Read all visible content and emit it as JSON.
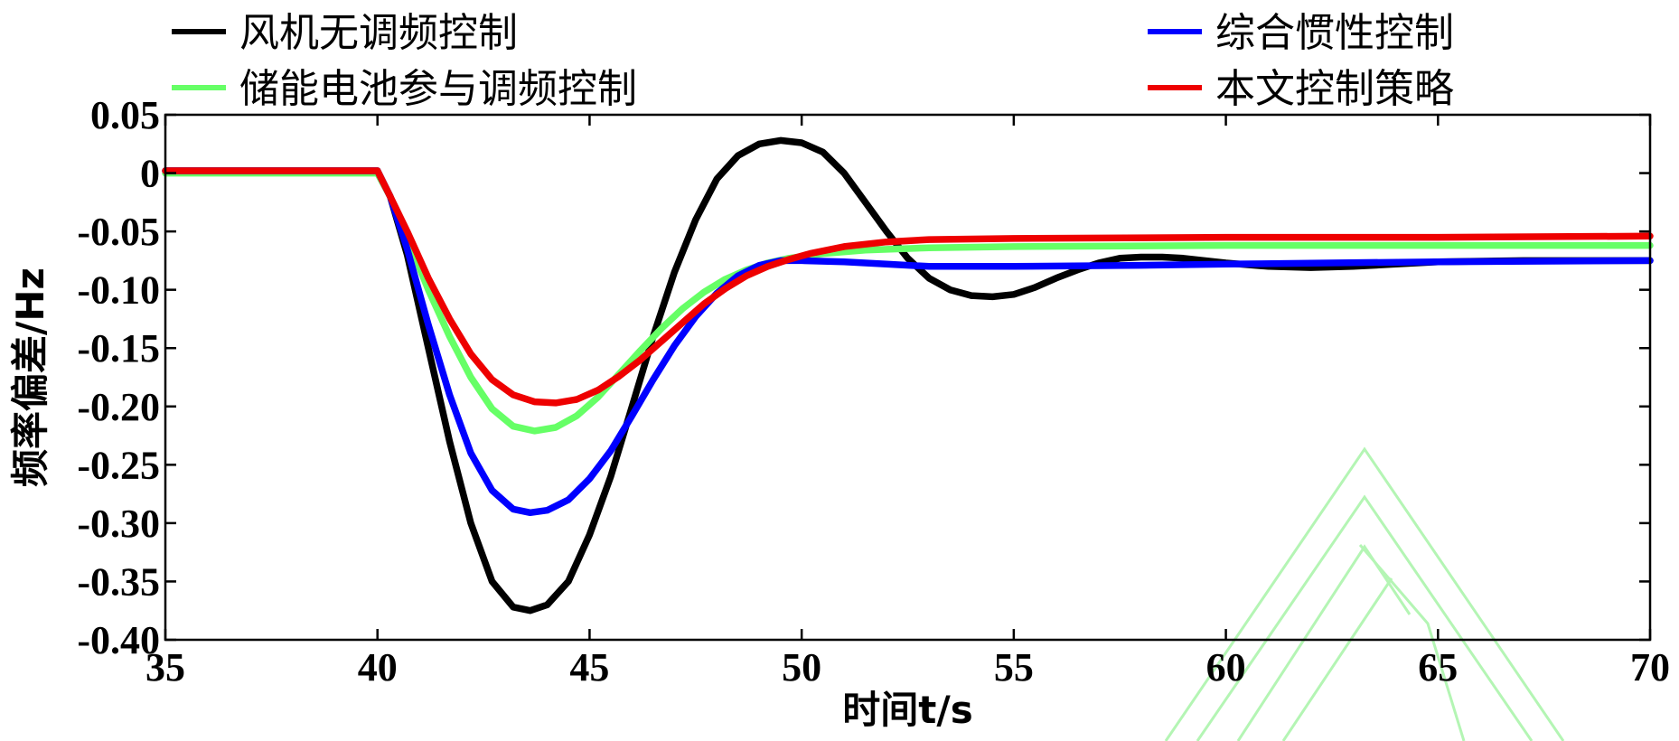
{
  "chart_data": {
    "type": "line",
    "xlabel": "时间t/s",
    "ylabel": "频率偏差/Hz",
    "xlim": [
      35,
      70
    ],
    "ylim": [
      -0.4,
      0.05
    ],
    "xticks": [
      35,
      40,
      45,
      50,
      55,
      60,
      65,
      70
    ],
    "xtick_labels": [
      "35",
      "40",
      "45",
      "50",
      "55",
      "60",
      "65",
      "70"
    ],
    "yticks": [
      0.05,
      0,
      -0.05,
      -0.1,
      -0.15,
      -0.2,
      -0.25,
      -0.3,
      -0.35,
      -0.4
    ],
    "ytick_labels": [
      "0.05",
      "0",
      "-0.05",
      "-0.10",
      "-0.15",
      "-0.20",
      "-0.25",
      "-0.30",
      "-0.35",
      "-0.40"
    ],
    "grid": false,
    "legend_position": "top",
    "series": [
      {
        "name": "风机无调频控制",
        "color": "#000000",
        "points": [
          [
            35,
            0.002
          ],
          [
            40,
            0.002
          ],
          [
            40.3,
            -0.02
          ],
          [
            40.7,
            -0.07
          ],
          [
            41.2,
            -0.15
          ],
          [
            41.7,
            -0.23
          ],
          [
            42.2,
            -0.3
          ],
          [
            42.7,
            -0.35
          ],
          [
            43.2,
            -0.372
          ],
          [
            43.6,
            -0.375
          ],
          [
            44.0,
            -0.37
          ],
          [
            44.5,
            -0.35
          ],
          [
            45.0,
            -0.31
          ],
          [
            45.5,
            -0.26
          ],
          [
            46.0,
            -0.2
          ],
          [
            46.5,
            -0.14
          ],
          [
            47.0,
            -0.085
          ],
          [
            47.5,
            -0.04
          ],
          [
            48.0,
            -0.005
          ],
          [
            48.5,
            0.015
          ],
          [
            49.0,
            0.025
          ],
          [
            49.5,
            0.028
          ],
          [
            50.0,
            0.026
          ],
          [
            50.5,
            0.018
          ],
          [
            51.0,
            0.0
          ],
          [
            51.5,
            -0.025
          ],
          [
            52.0,
            -0.05
          ],
          [
            52.5,
            -0.073
          ],
          [
            53.0,
            -0.09
          ],
          [
            53.5,
            -0.1
          ],
          [
            54.0,
            -0.105
          ],
          [
            54.5,
            -0.106
          ],
          [
            55.0,
            -0.104
          ],
          [
            55.5,
            -0.098
          ],
          [
            56.0,
            -0.09
          ],
          [
            56.5,
            -0.083
          ],
          [
            57.0,
            -0.077
          ],
          [
            57.5,
            -0.073
          ],
          [
            58.0,
            -0.072
          ],
          [
            58.5,
            -0.072
          ],
          [
            59.0,
            -0.073
          ],
          [
            60.0,
            -0.077
          ],
          [
            61.0,
            -0.08
          ],
          [
            62.0,
            -0.081
          ],
          [
            63.0,
            -0.08
          ],
          [
            64.0,
            -0.078
          ],
          [
            65.0,
            -0.076
          ],
          [
            67.0,
            -0.075
          ],
          [
            70,
            -0.075
          ]
        ]
      },
      {
        "name": "储能电池参与调频控制",
        "color": "#66ff66",
        "points": [
          [
            35,
            0.0
          ],
          [
            40,
            0.0
          ],
          [
            40.3,
            -0.02
          ],
          [
            40.7,
            -0.055
          ],
          [
            41.2,
            -0.1
          ],
          [
            41.7,
            -0.14
          ],
          [
            42.2,
            -0.175
          ],
          [
            42.7,
            -0.202
          ],
          [
            43.2,
            -0.217
          ],
          [
            43.7,
            -0.221
          ],
          [
            44.2,
            -0.218
          ],
          [
            44.7,
            -0.208
          ],
          [
            45.2,
            -0.192
          ],
          [
            45.7,
            -0.172
          ],
          [
            46.2,
            -0.152
          ],
          [
            46.7,
            -0.133
          ],
          [
            47.2,
            -0.116
          ],
          [
            47.7,
            -0.102
          ],
          [
            48.2,
            -0.091
          ],
          [
            48.7,
            -0.083
          ],
          [
            49.2,
            -0.077
          ],
          [
            49.7,
            -0.073
          ],
          [
            50.5,
            -0.069
          ],
          [
            51.5,
            -0.066
          ],
          [
            53,
            -0.064
          ],
          [
            55,
            -0.063
          ],
          [
            60,
            -0.062
          ],
          [
            65,
            -0.062
          ],
          [
            70,
            -0.062
          ]
        ]
      },
      {
        "name": "综合惯性控制",
        "color": "#0000ff",
        "points": [
          [
            35,
            0.002
          ],
          [
            40,
            0.002
          ],
          [
            40.3,
            -0.02
          ],
          [
            40.7,
            -0.065
          ],
          [
            41.2,
            -0.13
          ],
          [
            41.7,
            -0.19
          ],
          [
            42.2,
            -0.24
          ],
          [
            42.7,
            -0.272
          ],
          [
            43.2,
            -0.288
          ],
          [
            43.6,
            -0.291
          ],
          [
            44.0,
            -0.289
          ],
          [
            44.5,
            -0.28
          ],
          [
            45.0,
            -0.262
          ],
          [
            45.5,
            -0.238
          ],
          [
            46.0,
            -0.208
          ],
          [
            46.5,
            -0.177
          ],
          [
            47.0,
            -0.148
          ],
          [
            47.5,
            -0.123
          ],
          [
            48.0,
            -0.103
          ],
          [
            48.5,
            -0.088
          ],
          [
            49.0,
            -0.079
          ],
          [
            49.5,
            -0.075
          ],
          [
            50.0,
            -0.075
          ],
          [
            51.0,
            -0.076
          ],
          [
            52.0,
            -0.078
          ],
          [
            53.0,
            -0.08
          ],
          [
            55,
            -0.08
          ],
          [
            58,
            -0.079
          ],
          [
            60,
            -0.078
          ],
          [
            65,
            -0.076
          ],
          [
            70,
            -0.075
          ]
        ]
      },
      {
        "name": "本文控制策略",
        "color": "#ee0000",
        "points": [
          [
            35,
            0.002
          ],
          [
            40,
            0.002
          ],
          [
            40.3,
            -0.02
          ],
          [
            40.7,
            -0.05
          ],
          [
            41.2,
            -0.09
          ],
          [
            41.7,
            -0.125
          ],
          [
            42.2,
            -0.155
          ],
          [
            42.7,
            -0.177
          ],
          [
            43.2,
            -0.19
          ],
          [
            43.7,
            -0.196
          ],
          [
            44.2,
            -0.197
          ],
          [
            44.7,
            -0.194
          ],
          [
            45.2,
            -0.186
          ],
          [
            45.7,
            -0.174
          ],
          [
            46.2,
            -0.16
          ],
          [
            46.7,
            -0.144
          ],
          [
            47.2,
            -0.128
          ],
          [
            47.7,
            -0.112
          ],
          [
            48.2,
            -0.099
          ],
          [
            48.7,
            -0.088
          ],
          [
            49.2,
            -0.08
          ],
          [
            49.7,
            -0.074
          ],
          [
            50.2,
            -0.069
          ],
          [
            51.0,
            -0.063
          ],
          [
            52.0,
            -0.059
          ],
          [
            53.0,
            -0.057
          ],
          [
            55,
            -0.056
          ],
          [
            60,
            -0.055
          ],
          [
            65,
            -0.055
          ],
          [
            70,
            -0.054
          ]
        ]
      }
    ]
  },
  "watermark_color": "#b4f5b4"
}
